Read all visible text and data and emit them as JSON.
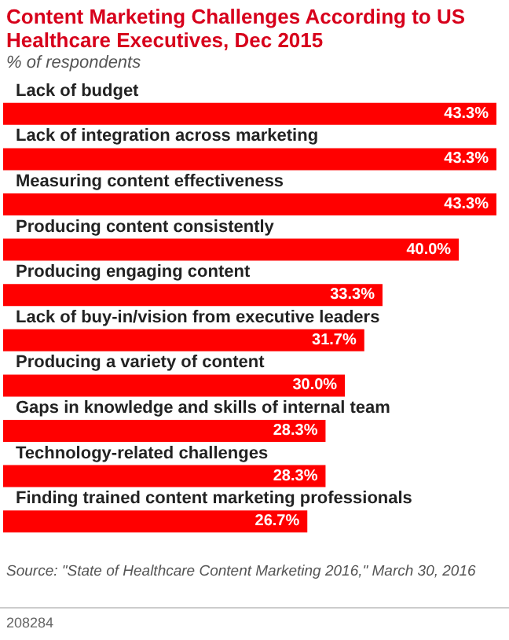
{
  "chart_data": {
    "type": "bar",
    "orientation": "horizontal",
    "title": "Content Marketing Challenges According to US Healthcare Executives, Dec 2015",
    "subtitle": "% of respondents",
    "categories": [
      "Lack of budget",
      "Lack of integration across marketing",
      "Measuring content effectiveness",
      "Producing content consistently",
      "Producing engaging content",
      "Lack of buy-in/vision from executive leaders",
      "Producing a variety of content",
      "Gaps in knowledge and skills of internal team",
      "Technology-related challenges",
      "Finding trained content marketing professionals"
    ],
    "values": [
      43.3,
      43.3,
      43.3,
      40.0,
      33.3,
      31.7,
      30.0,
      28.3,
      28.3,
      26.7
    ],
    "value_labels": [
      "43.3%",
      "43.3%",
      "43.3%",
      "40.0%",
      "33.3%",
      "31.7%",
      "30.0%",
      "28.3%",
      "28.3%",
      "26.7%"
    ],
    "color": "#ff0000",
    "annotations": [
      "Source: \"State of Healthcare Content Marketing 2016,\" March 30, 2016",
      "208284"
    ]
  }
}
